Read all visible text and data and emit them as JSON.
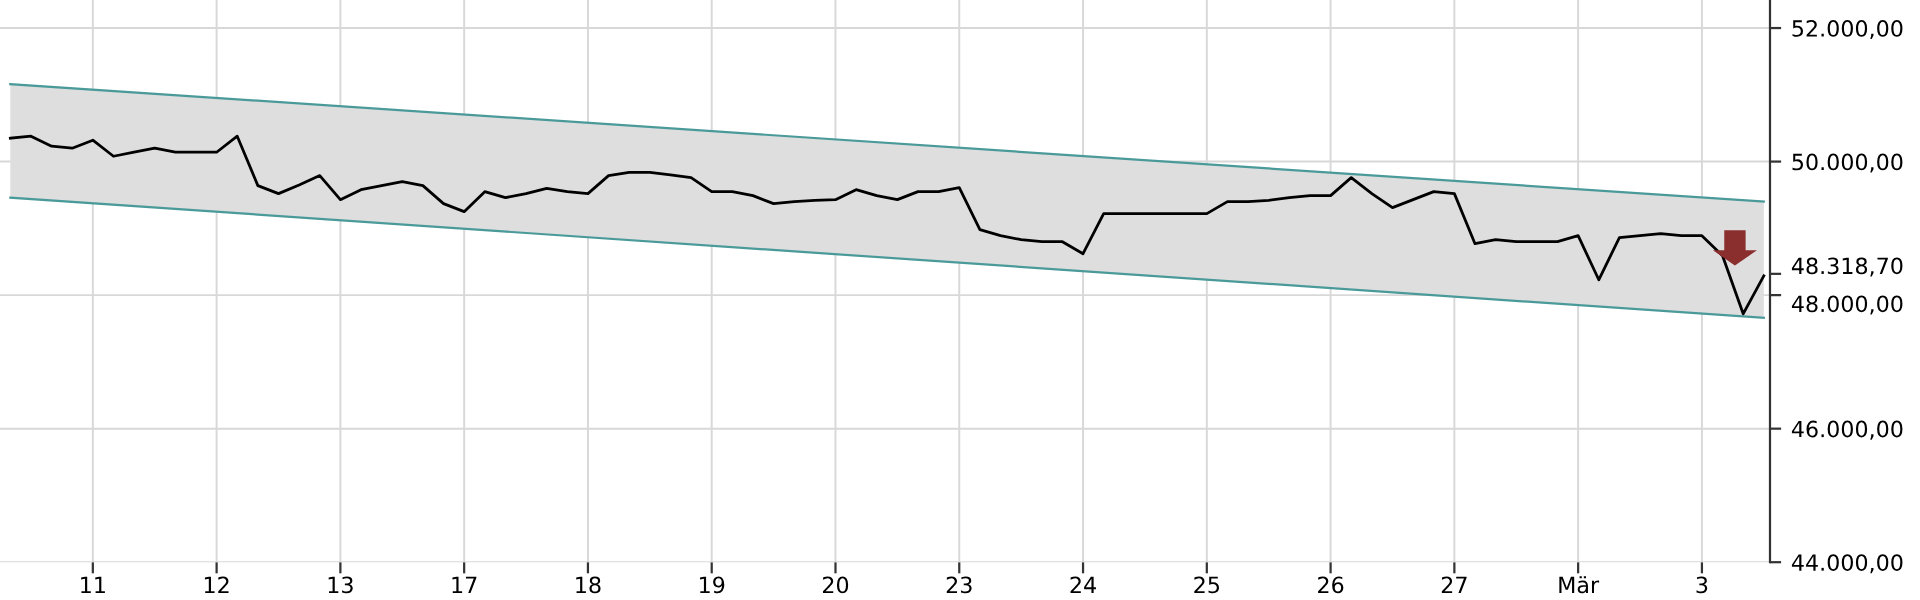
{
  "chart_data": {
    "type": "line",
    "categories": [
      null,
      null,
      null,
      null,
      "11",
      null,
      null,
      null,
      null,
      null,
      "12",
      null,
      null,
      null,
      null,
      null,
      "13",
      null,
      null,
      null,
      null,
      null,
      "17",
      null,
      null,
      null,
      null,
      null,
      "18",
      null,
      null,
      null,
      null,
      null,
      "19",
      null,
      null,
      null,
      null,
      null,
      "20",
      null,
      null,
      null,
      null,
      null,
      "23",
      null,
      null,
      null,
      null,
      null,
      "24",
      null,
      null,
      null,
      null,
      null,
      "25",
      null,
      null,
      null,
      null,
      null,
      "26",
      null,
      null,
      null,
      null,
      null,
      "27",
      null,
      null,
      null,
      null,
      null,
      "Mär",
      null,
      null,
      null,
      null,
      null,
      "3",
      null,
      null,
      null
    ],
    "series": [
      {
        "color": "#000000",
        "values": [
          50350,
          50380,
          50230,
          50200,
          50320,
          50080,
          50140,
          50200,
          50140,
          50140,
          50140,
          50380,
          49640,
          49520,
          49650,
          49790,
          49430,
          49580,
          49640,
          49700,
          49640,
          49370,
          49250,
          49550,
          49460,
          49520,
          49600,
          49550,
          49520,
          49790,
          49840,
          49840,
          49800,
          49760,
          49550,
          49550,
          49490,
          49370,
          49400,
          49420,
          49430,
          49580,
          49490,
          49430,
          49550,
          49550,
          49610,
          48980,
          48890,
          48830,
          48800,
          48800,
          48620,
          49220,
          49220,
          49220,
          49220,
          49220,
          49220,
          49400,
          49400,
          49420,
          49460,
          49490,
          49490,
          49760,
          49520,
          49310,
          49430,
          49550,
          49520,
          48770,
          48830,
          48800,
          48800,
          48800,
          48890,
          48230,
          48860,
          48890,
          48920,
          48890,
          48890,
          48590,
          47720,
          48290
        ]
      },
      {
        "color": "#4a9a9a",
        "values": [
          51160,
          null,
          null,
          null,
          null,
          null,
          null,
          null,
          null,
          null,
          null,
          null,
          null,
          null,
          null,
          null,
          null,
          null,
          null,
          null,
          null,
          null,
          null,
          null,
          null,
          null,
          null,
          null,
          null,
          null,
          null,
          null,
          null,
          null,
          null,
          null,
          null,
          null,
          null,
          null,
          null,
          null,
          null,
          null,
          null,
          null,
          null,
          null,
          null,
          null,
          null,
          null,
          null,
          null,
          null,
          null,
          null,
          null,
          null,
          null,
          null,
          null,
          null,
          null,
          null,
          null,
          null,
          null,
          null,
          null,
          null,
          null,
          null,
          null,
          null,
          null,
          null,
          null,
          null,
          null,
          null,
          null,
          null,
          null,
          null,
          49400
        ],
        "lower": [
          49460,
          null,
          null,
          null,
          null,
          null,
          null,
          null,
          null,
          null,
          null,
          null,
          null,
          null,
          null,
          null,
          null,
          null,
          null,
          null,
          null,
          null,
          null,
          null,
          null,
          null,
          null,
          null,
          null,
          null,
          null,
          null,
          null,
          null,
          null,
          null,
          null,
          null,
          null,
          null,
          null,
          null,
          null,
          null,
          null,
          null,
          null,
          null,
          null,
          null,
          null,
          null,
          null,
          null,
          null,
          null,
          null,
          null,
          null,
          null,
          null,
          null,
          null,
          null,
          null,
          null,
          null,
          null,
          null,
          null,
          null,
          null,
          null,
          null,
          null,
          null,
          null,
          null,
          null,
          null,
          null,
          null,
          null,
          null,
          null,
          47660
        ],
        "upper": [
          51160,
          null,
          null,
          null,
          null,
          null,
          null,
          null,
          null,
          null,
          null,
          null,
          null,
          null,
          null,
          null,
          null,
          null,
          null,
          null,
          null,
          null,
          null,
          null,
          null,
          null,
          null,
          null,
          null,
          null,
          null,
          null,
          null,
          null,
          null,
          null,
          null,
          null,
          null,
          null,
          null,
          null,
          null,
          null,
          null,
          null,
          null,
          null,
          null,
          null,
          null,
          null,
          null,
          null,
          null,
          null,
          null,
          null,
          null,
          null,
          null,
          null,
          null,
          null,
          null,
          null,
          null,
          null,
          null,
          null,
          null,
          null,
          null,
          null,
          null,
          null,
          null,
          null,
          null,
          null,
          null,
          null,
          null,
          null,
          null,
          49400
        ]
      },
      {
        "color": "#4a9a9a",
        "values": [
          49460,
          null,
          null,
          null,
          null,
          null,
          null,
          null,
          null,
          null,
          null,
          null,
          null,
          null,
          null,
          null,
          null,
          null,
          null,
          null,
          null,
          null,
          null,
          null,
          null,
          null,
          null,
          null,
          null,
          null,
          null,
          null,
          null,
          null,
          null,
          null,
          null,
          null,
          null,
          null,
          null,
          null,
          null,
          null,
          null,
          null,
          null,
          null,
          null,
          null,
          null,
          null,
          null,
          null,
          null,
          null,
          null,
          null,
          null,
          null,
          null,
          null,
          null,
          null,
          null,
          null,
          null,
          null,
          null,
          null,
          null,
          null,
          null,
          null,
          null,
          null,
          null,
          null,
          null,
          null,
          null,
          null,
          null,
          null,
          null,
          47660
        ]
      }
    ],
    "ylim": [
      44000,
      52420
    ],
    "yticks": [
      {
        "value": 44000,
        "label": "44.000,00"
      },
      {
        "value": 46000,
        "label": "46.000,00"
      },
      {
        "value": 48000,
        "label": "48.000,00"
      },
      {
        "value": 48318.7,
        "label": "48.318,70"
      },
      {
        "value": 50000,
        "label": "50.000,00"
      },
      {
        "value": 52000,
        "label": "52.000,00"
      }
    ],
    "grid": true
  }
}
